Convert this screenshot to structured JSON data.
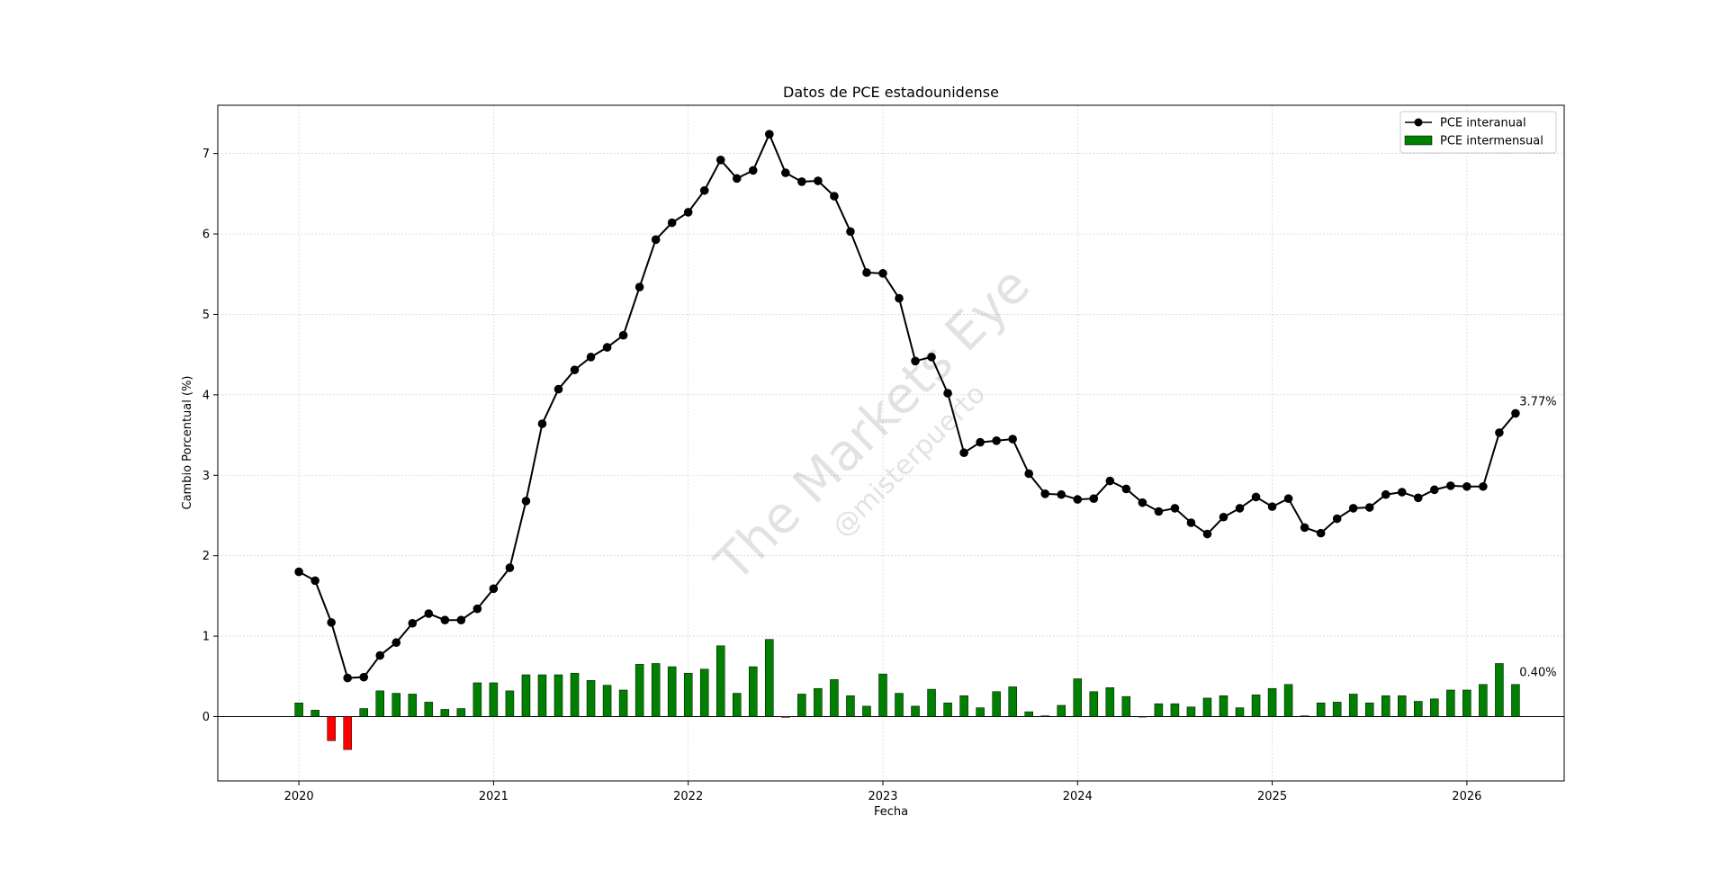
{
  "chart_data": {
    "type": "bar",
    "title": "Datos de PCE estadounidense",
    "xlabel": "Fecha",
    "ylabel": "Cambio Porcentual (%)",
    "ylim": [
      -0.8,
      7.6
    ],
    "xlim": [
      "2019-08",
      "2026-07"
    ],
    "yticks": [
      0,
      1,
      2,
      3,
      4,
      5,
      6,
      7
    ],
    "xticks": [
      "2020",
      "2021",
      "2022",
      "2023",
      "2024",
      "2025",
      "2026"
    ],
    "grid": true,
    "legend_position": "top-right",
    "dates": [
      "2020-01",
      "2020-02",
      "2020-03",
      "2020-04",
      "2020-05",
      "2020-06",
      "2020-07",
      "2020-08",
      "2020-09",
      "2020-10",
      "2020-11",
      "2020-12",
      "2021-01",
      "2021-02",
      "2021-03",
      "2021-04",
      "2021-05",
      "2021-06",
      "2021-07",
      "2021-08",
      "2021-09",
      "2021-10",
      "2021-11",
      "2021-12",
      "2022-01",
      "2022-02",
      "2022-03",
      "2022-04",
      "2022-05",
      "2022-06",
      "2022-07",
      "2022-08",
      "2022-09",
      "2022-10",
      "2022-11",
      "2022-12",
      "2023-01",
      "2023-02",
      "2023-03",
      "2023-04",
      "2023-05",
      "2023-06",
      "2023-07",
      "2023-08",
      "2023-09",
      "2023-10",
      "2023-11",
      "2023-12",
      "2024-01",
      "2024-02",
      "2024-03",
      "2024-04",
      "2024-05",
      "2024-06",
      "2024-07",
      "2024-08",
      "2024-09",
      "2024-10",
      "2024-11",
      "2024-12",
      "2025-01",
      "2025-02",
      "2025-03",
      "2025-04",
      "2025-05",
      "2025-06",
      "2025-07",
      "2025-08",
      "2025-09",
      "2025-10",
      "2025-11",
      "2025-12",
      "2026-01",
      "2026-02",
      "2026-03",
      "2026-04"
    ],
    "series": [
      {
        "name": "PCE interanual",
        "type": "line",
        "color": "#000000",
        "values": [
          1.8,
          1.69,
          1.17,
          0.48,
          0.49,
          0.76,
          0.92,
          1.16,
          1.28,
          1.2,
          1.2,
          1.34,
          1.59,
          1.85,
          2.68,
          3.64,
          4.07,
          4.31,
          4.47,
          4.59,
          4.74,
          5.34,
          5.93,
          6.14,
          6.27,
          6.54,
          6.92,
          6.69,
          6.79,
          7.24,
          6.76,
          6.65,
          6.66,
          6.47,
          6.03,
          5.52,
          5.51,
          5.2,
          4.42,
          4.47,
          4.02,
          3.28,
          3.41,
          3.43,
          3.45,
          3.02,
          2.77,
          2.76,
          2.7,
          2.71,
          2.93,
          2.83,
          2.66,
          2.55,
          2.59,
          2.41,
          2.27,
          2.48,
          2.59,
          2.73,
          2.61,
          2.71,
          2.35,
          2.28,
          2.46,
          2.59,
          2.6,
          2.76,
          2.79,
          2.72,
          2.82,
          2.87,
          2.86,
          2.86,
          3.53,
          3.77
        ]
      },
      {
        "name": "PCE intermensual",
        "type": "bar",
        "color": "#008000",
        "negative_color": "#ff0000",
        "values": [
          0.17,
          0.08,
          -0.3,
          -0.41,
          0.1,
          0.32,
          0.29,
          0.28,
          0.18,
          0.09,
          0.1,
          0.42,
          0.42,
          0.32,
          0.52,
          0.52,
          0.52,
          0.54,
          0.45,
          0.39,
          0.33,
          0.65,
          0.66,
          0.62,
          0.54,
          0.59,
          0.88,
          0.29,
          0.62,
          0.96,
          -0.01,
          0.28,
          0.35,
          0.46,
          0.26,
          0.13,
          0.53,
          0.29,
          0.13,
          0.34,
          0.17,
          0.26,
          0.11,
          0.31,
          0.37,
          0.06,
          0.01,
          0.14,
          0.47,
          0.31,
          0.36,
          0.25,
          0.0,
          0.16,
          0.16,
          0.12,
          0.23,
          0.26,
          0.11,
          0.27,
          0.35,
          0.4,
          0.01,
          0.17,
          0.18,
          0.28,
          0.17,
          0.26,
          0.26,
          0.19,
          0.22,
          0.33,
          0.33,
          0.4,
          0.66,
          0.4
        ]
      }
    ],
    "annotations": [
      {
        "text": "3.77%",
        "series": "PCE interanual",
        "date": "2026-04",
        "value": 3.77
      },
      {
        "text": "0.40%",
        "series": "PCE intermensual",
        "date": "2026-04",
        "value": 0.4
      }
    ]
  },
  "watermark": {
    "main": "The Markets Eye",
    "handle": "@misterpuerto"
  }
}
